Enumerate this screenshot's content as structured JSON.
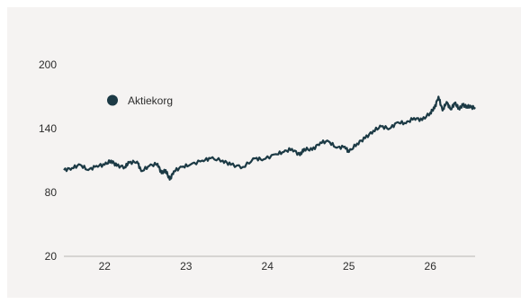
{
  "chart_data": {
    "type": "line",
    "title": "",
    "xlabel": "",
    "ylabel": "",
    "ylim": [
      20,
      200
    ],
    "xlim": [
      21.5,
      26.55
    ],
    "y_ticks": [
      "200",
      "140",
      "80",
      "20"
    ],
    "y_tick_values": [
      200,
      140,
      80,
      20
    ],
    "x_ticks": [
      "22",
      "23",
      "24",
      "25",
      "26"
    ],
    "x_tick_values": [
      22,
      23,
      24,
      25,
      26
    ],
    "grid": false,
    "legend_position": "top-left",
    "series": [
      {
        "name": "Aktiekorg",
        "color": "#1c3a45",
        "x": [
          21.5,
          21.6,
          21.7,
          21.8,
          21.9,
          22.0,
          22.08,
          22.15,
          22.25,
          22.3,
          22.4,
          22.45,
          22.55,
          22.65,
          22.7,
          22.75,
          22.8,
          22.85,
          22.95,
          23.05,
          23.2,
          23.3,
          23.45,
          23.55,
          23.7,
          23.85,
          23.95,
          24.1,
          24.2,
          24.3,
          24.4,
          24.45,
          24.55,
          24.65,
          24.75,
          24.85,
          24.95,
          25.0,
          25.1,
          25.2,
          25.3,
          25.4,
          25.5,
          25.6,
          25.7,
          25.8,
          25.9,
          26.0,
          26.05,
          26.1,
          26.15,
          26.2,
          26.25,
          26.3,
          26.35,
          26.4,
          26.45,
          26.5,
          26.55
        ],
        "values": [
          101,
          103,
          106,
          101,
          105,
          106,
          110,
          105,
          104,
          108,
          109,
          100,
          105,
          107,
          98,
          101,
          92,
          100,
          104,
          106,
          110,
          112,
          110,
          106,
          104,
          112,
          111,
          116,
          118,
          121,
          115,
          121,
          120,
          127,
          128,
          122,
          123,
          118,
          126,
          131,
          138,
          142,
          140,
          146,
          145,
          150,
          148,
          155,
          159,
          170,
          157,
          165,
          158,
          164,
          159,
          162,
          161,
          160,
          160
        ]
      }
    ]
  }
}
